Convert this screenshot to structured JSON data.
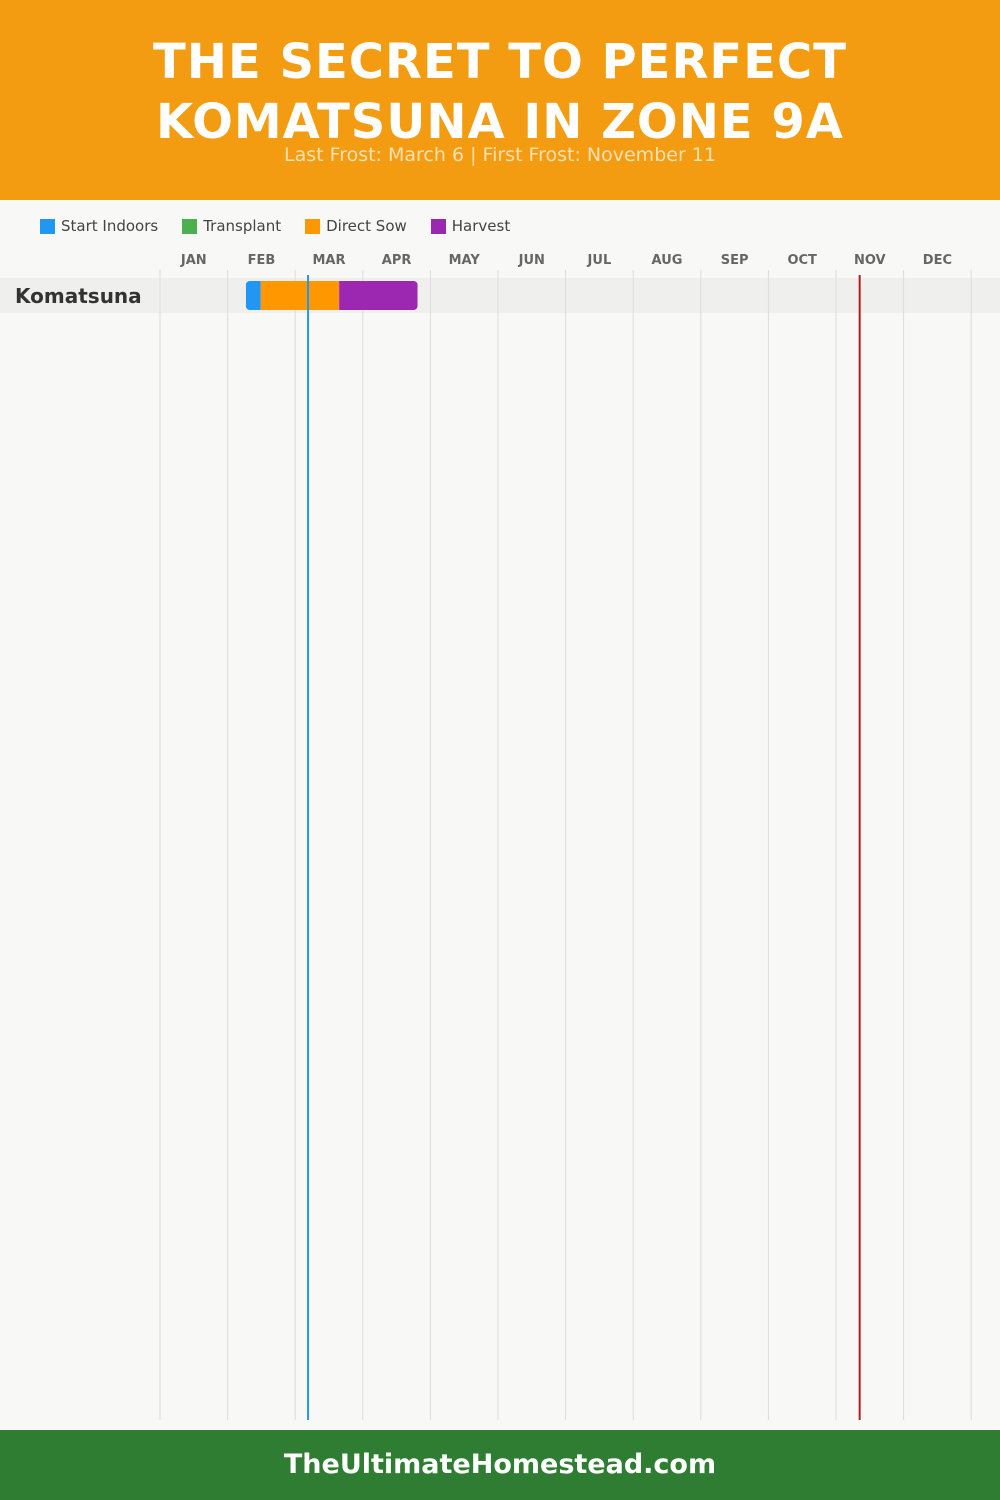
{
  "header": {
    "title_line1": "THE SECRET TO PERFECT",
    "title_line2": "KOMATSUNA IN ZONE 9A",
    "subtitle": "Last Frost: March 6 | First Frost: November 11"
  },
  "legend": [
    {
      "label": "Start Indoors",
      "color": "#2196f3"
    },
    {
      "label": "Transplant",
      "color": "#4caf50"
    },
    {
      "label": "Direct Sow",
      "color": "#ff9800"
    },
    {
      "label": "Harvest",
      "color": "#9c27b0"
    }
  ],
  "chart_data": {
    "type": "gantt",
    "x_unit": "month of year (1 = start of January, 13 = end of December)",
    "months": [
      "JAN",
      "FEB",
      "MAR",
      "APR",
      "MAY",
      "JUN",
      "JUL",
      "AUG",
      "SEP",
      "OCT",
      "NOV",
      "DEC"
    ],
    "xlim": [
      1,
      13
    ],
    "rows": [
      {
        "crop": "Komatsuna",
        "segments": [
          {
            "phase": "Start Indoors",
            "start": 2.27,
            "end": 2.49,
            "color": "#2196f3"
          },
          {
            "phase": "Direct Sow",
            "start": 2.49,
            "end": 3.65,
            "color": "#ff9800"
          },
          {
            "phase": "Harvest",
            "start": 3.65,
            "end": 4.81,
            "color": "#9c27b0"
          }
        ]
      }
    ],
    "frost_lines": [
      {
        "name": "Last Frost",
        "date": "March 6",
        "x": 3.19,
        "color": "#2196f3"
      },
      {
        "name": "First Frost",
        "date": "November 11",
        "x": 11.35,
        "color": "#b71c1c"
      }
    ],
    "grid": true
  },
  "footer": {
    "text": "TheUltimateHomestead.com"
  }
}
